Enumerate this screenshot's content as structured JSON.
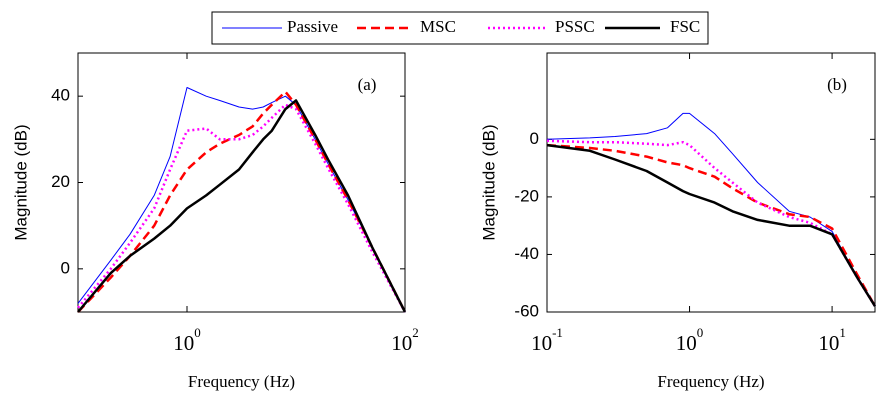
{
  "chart_data": [
    {
      "type": "line",
      "annotation": "(a)",
      "xlabel": "Frequency (Hz)",
      "ylabel": "Magnitude (dB)",
      "xscale": "log",
      "xlim": [
        0.1,
        100
      ],
      "xticks": [
        {
          "value": 1,
          "label": "10",
          "sup": "0"
        },
        {
          "value": 100,
          "label": "10",
          "sup": "2"
        }
      ],
      "ylim": [
        -10,
        50
      ],
      "yticks": [
        0,
        20,
        40
      ],
      "x": [
        0.1,
        0.2,
        0.3,
        0.5,
        0.7,
        1,
        1.5,
        2,
        3,
        4,
        5,
        6,
        8,
        10,
        15,
        20,
        30,
        50,
        100
      ],
      "series": [
        {
          "name": "Passive",
          "color": "#0000ff",
          "style": "solid",
          "width": 1,
          "values": [
            -8,
            2,
            8,
            17,
            26,
            42,
            40,
            39,
            37.5,
            37,
            37.5,
            38.5,
            40,
            38,
            30,
            24,
            16,
            5,
            -10
          ]
        },
        {
          "name": "MSC",
          "color": "#ff0000",
          "style": "dashed",
          "width": 2.5,
          "values": [
            -10,
            -2,
            3,
            10,
            17,
            23,
            27,
            29,
            31,
            33,
            36,
            38,
            41,
            38,
            30,
            24,
            16,
            5,
            -10
          ]
        },
        {
          "name": "PSSC",
          "color": "#ff00ff",
          "style": "dotted",
          "width": 2.5,
          "values": [
            -9,
            0,
            6,
            14,
            23,
            32,
            32.5,
            30,
            30,
            31,
            33,
            35,
            38,
            37,
            29,
            23,
            15,
            4,
            -10
          ]
        },
        {
          "name": "FSC",
          "color": "#000000",
          "style": "solid",
          "width": 2.5,
          "values": [
            -10,
            -1,
            3,
            7,
            10,
            14,
            17,
            19.5,
            23,
            27,
            30,
            32,
            37,
            39,
            31,
            25,
            17,
            5,
            -10
          ]
        }
      ]
    },
    {
      "type": "line",
      "annotation": "(b)",
      "xlabel": "Frequency (Hz)",
      "ylabel": "Magnitude (dB)",
      "xscale": "log",
      "xlim": [
        0.1,
        20
      ],
      "xticks": [
        {
          "value": 0.1,
          "label": "10",
          "sup": "-1"
        },
        {
          "value": 1,
          "label": "10",
          "sup": "0"
        },
        {
          "value": 10,
          "label": "10",
          "sup": "1"
        }
      ],
      "ylim": [
        -60,
        30
      ],
      "yticks": [
        -60,
        -40,
        -20,
        0
      ],
      "x": [
        0.1,
        0.2,
        0.3,
        0.5,
        0.7,
        0.9,
        1,
        1.5,
        2,
        3,
        5,
        7,
        10,
        15,
        20
      ],
      "series": [
        {
          "name": "Passive",
          "color": "#0000ff",
          "style": "solid",
          "width": 1,
          "values": [
            0,
            0.5,
            1,
            2,
            4,
            9,
            9,
            2,
            -5,
            -15,
            -25,
            -27,
            -32,
            -48,
            -58
          ]
        },
        {
          "name": "MSC",
          "color": "#ff0000",
          "style": "dashed",
          "width": 2.5,
          "values": [
            -2,
            -3,
            -4,
            -6,
            -8,
            -9,
            -10,
            -13,
            -17,
            -22,
            -26,
            -27,
            -31,
            -47,
            -58
          ]
        },
        {
          "name": "PSSC",
          "color": "#ff00ff",
          "style": "dotted",
          "width": 2.5,
          "values": [
            -0.5,
            -1,
            -1,
            -1.5,
            -2,
            -1,
            -2,
            -10,
            -15,
            -22,
            -27,
            -29,
            -33,
            -48,
            -58
          ]
        },
        {
          "name": "FSC",
          "color": "#000000",
          "style": "solid",
          "width": 2.5,
          "values": [
            -2,
            -4,
            -7,
            -11,
            -15,
            -18,
            -19,
            -22,
            -25,
            -28,
            -30,
            -30,
            -33,
            -48,
            -58
          ]
        }
      ]
    }
  ]
}
